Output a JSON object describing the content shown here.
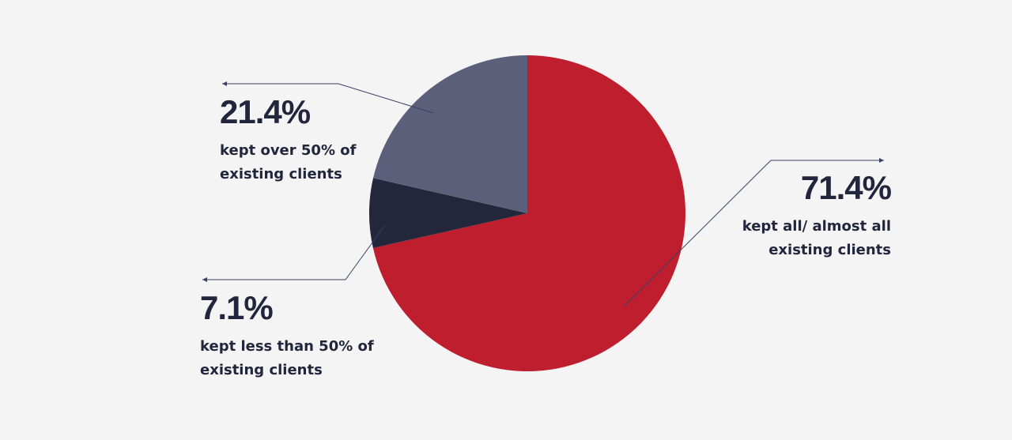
{
  "chart_data": {
    "type": "pie",
    "categories": [
      "kept all/ almost all existing clients",
      "kept less than 50% of existing clients",
      "kept over 50% of existing clients"
    ],
    "values": [
      71.4,
      7.1,
      21.4
    ],
    "value_labels": [
      "71.4%",
      "7.1%",
      "21.4%"
    ],
    "colors": [
      "#be1e2d",
      "#23273b",
      "#5b5f7a"
    ]
  }
}
